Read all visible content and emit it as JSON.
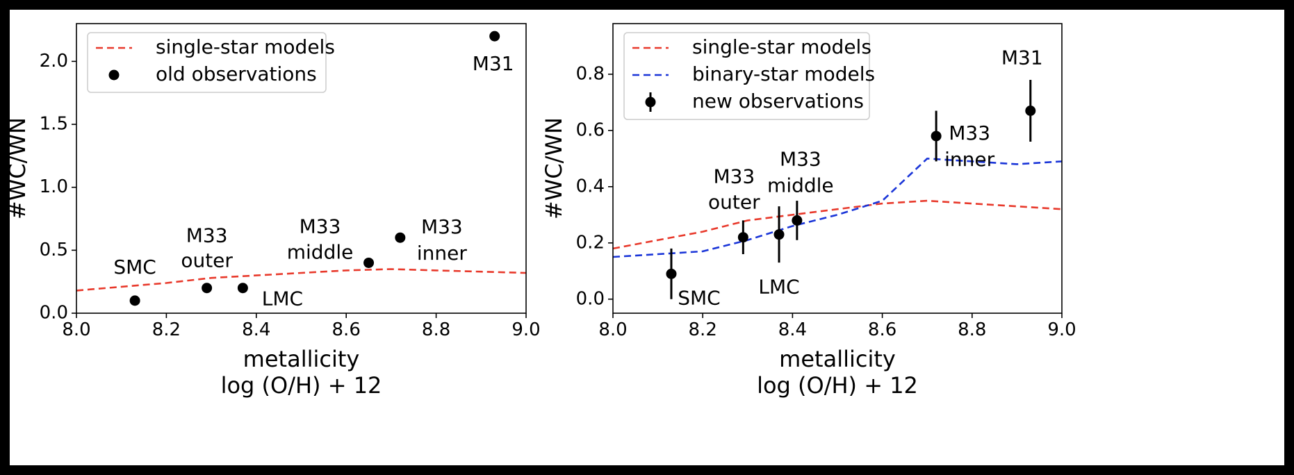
{
  "chart_data": [
    {
      "type": "line",
      "xlabel": [
        "metallicity",
        "log (O/H) + 12"
      ],
      "ylabel": "#WC/WN",
      "xlim": [
        8.0,
        9.0
      ],
      "ylim": [
        0.0,
        2.3
      ],
      "xticks": [
        "8.0",
        "8.2",
        "8.4",
        "8.6",
        "8.8",
        "9.0"
      ],
      "yticks": [
        "0.0",
        "0.5",
        "1.0",
        "1.5",
        "2.0"
      ],
      "grid": false,
      "legend_position": "top-left",
      "series": [
        {
          "name": "single-star models",
          "kind": "dashed-line",
          "color": "#e8392b",
          "x": [
            8.0,
            8.2,
            8.3,
            8.4,
            8.5,
            8.6,
            8.7,
            8.8,
            8.9,
            9.0
          ],
          "y": [
            0.18,
            0.24,
            0.28,
            0.3,
            0.32,
            0.34,
            0.35,
            0.34,
            0.33,
            0.32
          ]
        },
        {
          "name": "old observations",
          "kind": "points",
          "color": "#000000",
          "x": [
            8.13,
            8.29,
            8.37,
            8.65,
            8.72,
            8.93
          ],
          "y": [
            0.1,
            0.2,
            0.2,
            0.4,
            0.6,
            2.2
          ],
          "labels": [
            [
              "SMC"
            ],
            [
              "M33",
              "outer"
            ],
            [
              "LMC"
            ],
            [
              "M33",
              "middle"
            ],
            [
              "M33",
              "inner"
            ],
            [
              "M31"
            ]
          ]
        }
      ]
    },
    {
      "type": "line",
      "xlabel": [
        "metallicity",
        "log (O/H) + 12"
      ],
      "ylabel": "#WC/WN",
      "xlim": [
        8.0,
        9.0
      ],
      "ylim": [
        -0.05,
        0.98
      ],
      "xticks": [
        "8.0",
        "8.2",
        "8.4",
        "8.6",
        "8.8",
        "9.0"
      ],
      "yticks": [
        "0.0",
        "0.2",
        "0.4",
        "0.6",
        "0.8"
      ],
      "grid": false,
      "legend_position": "top-left",
      "series": [
        {
          "name": "single-star models",
          "kind": "dashed-line",
          "color": "#e8392b",
          "x": [
            8.0,
            8.2,
            8.3,
            8.4,
            8.5,
            8.6,
            8.7,
            8.8,
            8.9,
            9.0
          ],
          "y": [
            0.18,
            0.24,
            0.28,
            0.3,
            0.32,
            0.34,
            0.35,
            0.34,
            0.33,
            0.32
          ]
        },
        {
          "name": "binary-star models",
          "kind": "dashed-line",
          "color": "#1a35d8",
          "x": [
            8.0,
            8.1,
            8.2,
            8.3,
            8.4,
            8.5,
            8.6,
            8.7,
            8.8,
            8.9,
            9.0
          ],
          "y": [
            0.15,
            0.16,
            0.17,
            0.21,
            0.26,
            0.3,
            0.35,
            0.5,
            0.49,
            0.48,
            0.49
          ]
        },
        {
          "name": "new observations",
          "kind": "errorbar-points",
          "color": "#000000",
          "x": [
            8.13,
            8.29,
            8.37,
            8.41,
            8.72,
            8.93
          ],
          "y": [
            0.09,
            0.22,
            0.23,
            0.28,
            0.58,
            0.67
          ],
          "yerr": [
            0.09,
            0.06,
            0.1,
            0.07,
            0.09,
            0.11
          ],
          "labels": [
            [
              "SMC"
            ],
            [
              "M33",
              "outer"
            ],
            [
              "LMC"
            ],
            [
              "M33",
              "middle"
            ],
            [
              "M33",
              "inner"
            ],
            [
              "M31"
            ]
          ]
        }
      ]
    }
  ]
}
